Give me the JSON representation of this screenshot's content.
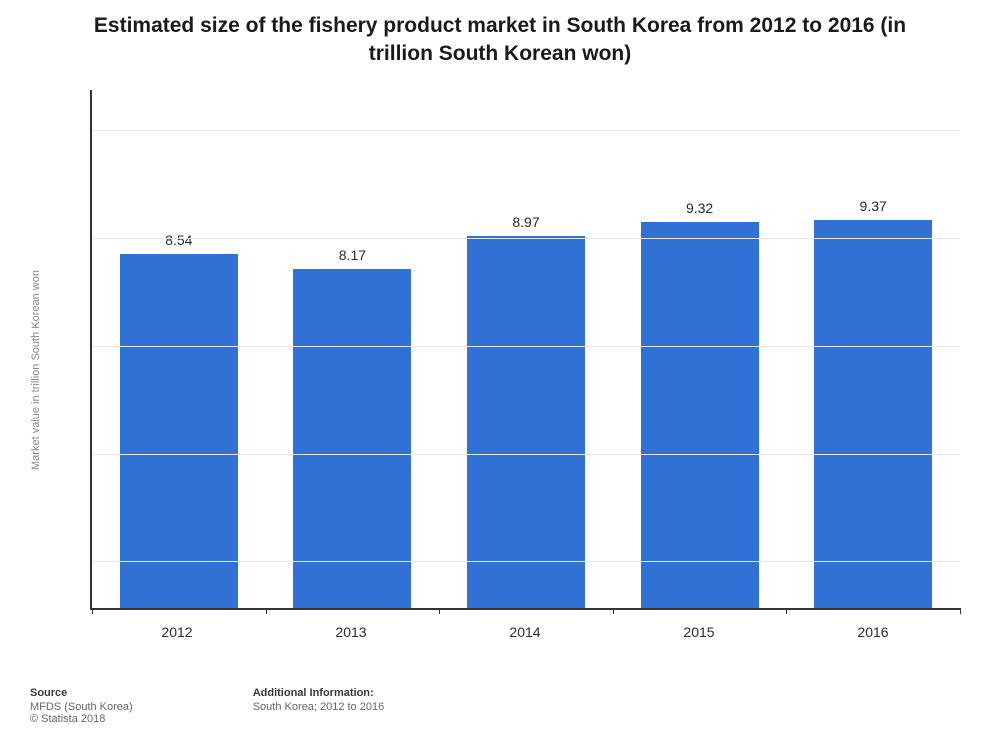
{
  "title": "Estimated size of the fishery product market in South Korea from 2012 to 2016 (in trillion South Korean won)",
  "title_fontsize": 21,
  "chart": {
    "type": "bar",
    "categories": [
      "2012",
      "2013",
      "2014",
      "2015",
      "2016"
    ],
    "values": [
      8.54,
      8.17,
      8.97,
      9.32,
      9.37
    ],
    "value_labels": [
      "8.54",
      "8.17",
      "8.97",
      "9.32",
      "9.37"
    ],
    "bar_color": "#2f71d4",
    "ylabel": "Market value in trillion South Korean won",
    "ylabel_fontsize": 11,
    "ylabel_color": "#888888",
    "axis_color": "#333333",
    "grid_color": "#e8e8e8",
    "background_color": "#ffffff",
    "ylim": [
      0,
      12.5
    ],
    "grid_lines": [
      0.088,
      0.296,
      0.504,
      0.712,
      0.92
    ],
    "value_label_fontsize": 14,
    "x_label_fontsize": 14,
    "x_label_color": "#2a2a2a",
    "bar_width_ratio": 0.68
  },
  "footer": {
    "source_heading": "Source",
    "source_line1": "MFDS (South Korea)",
    "source_line2": "© Statista 2018",
    "info_heading": "Additional Information:",
    "info_line": "South Korea; 2012 to 2016",
    "fontsize": 11
  }
}
